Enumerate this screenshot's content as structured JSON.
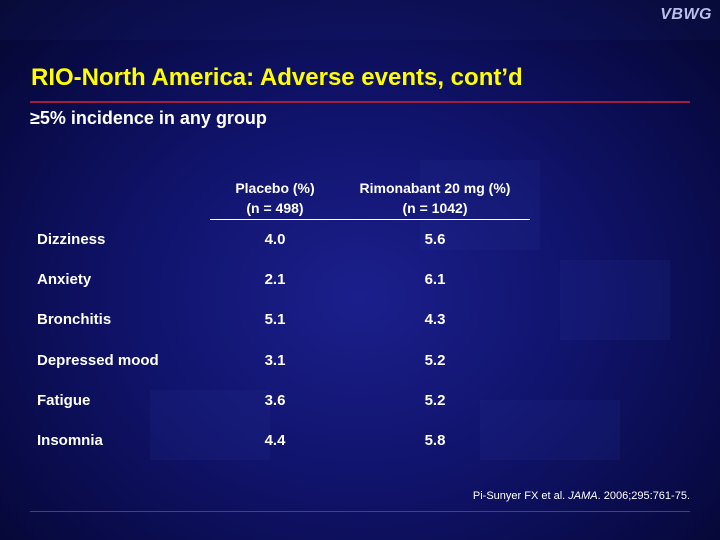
{
  "logo": "VBWG",
  "title": "RIO-North America: Adverse events, cont’d",
  "subtitle": "≥5% incidence in any group",
  "columns": {
    "placebo": {
      "line1": "Placebo (%)",
      "line2": "(n = 498)"
    },
    "rimonabant": {
      "line1": "Rimonabant 20 mg (%)",
      "line2": "(n = 1042)"
    }
  },
  "rows": [
    {
      "name": "Dizziness",
      "placebo": "4.0",
      "rimonabant": "5.6"
    },
    {
      "name": "Anxiety",
      "placebo": "2.1",
      "rimonabant": "6.1"
    },
    {
      "name": "Bronchitis",
      "placebo": "5.1",
      "rimonabant": "4.3"
    },
    {
      "name": "Depressed mood",
      "placebo": "3.1",
      "rimonabant": "5.2"
    },
    {
      "name": "Fatigue",
      "placebo": "3.6",
      "rimonabant": "5.2"
    },
    {
      "name": "Insomnia",
      "placebo": "4.4",
      "rimonabant": "5.8"
    }
  ],
  "citation": {
    "authors": "Pi-Sunyer FX et al.",
    "journal": "JAMA",
    "ref": ". 2006;295:761-75."
  },
  "colors": {
    "title": "#ffff00",
    "rule": "#a0203a",
    "background": "#10136a"
  }
}
